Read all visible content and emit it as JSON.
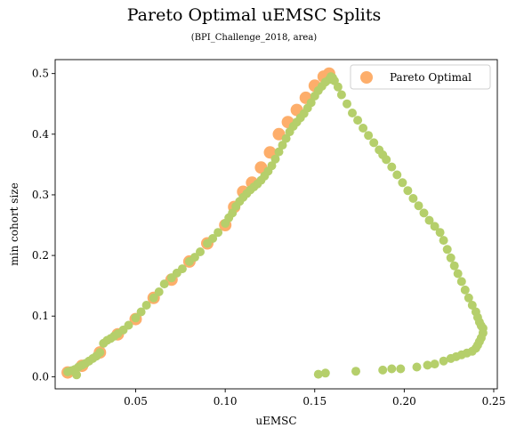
{
  "chart_data": {
    "type": "scatter",
    "title": "Pareto Optimal uEMSC Splits",
    "subtitle": "(BPI_Challenge_2018, area)",
    "xlabel": "uEMSC",
    "ylabel": "min cohort size",
    "xlim": [
      0.005,
      0.252
    ],
    "ylim": [
      -0.02,
      0.523
    ],
    "xticks": [
      0.05,
      0.1,
      0.15,
      0.2,
      0.25
    ],
    "xtick_labels": [
      "0.05",
      "0.10",
      "0.15",
      "0.20",
      "0.25"
    ],
    "yticks": [
      0.0,
      0.1,
      0.2,
      0.3,
      0.4,
      0.5
    ],
    "ytick_labels": [
      "0.0",
      "0.1",
      "0.2",
      "0.3",
      "0.4",
      "0.5"
    ],
    "grid": false,
    "legend": {
      "position": "top-right",
      "entries": [
        {
          "label": "Pareto Optimal",
          "color": "#fdae6b"
        }
      ]
    },
    "series": [
      {
        "name": "Pareto Optimal",
        "color": "#fdae6b",
        "x": [
          0.012,
          0.02,
          0.03,
          0.04,
          0.05,
          0.06,
          0.07,
          0.08,
          0.09,
          0.1,
          0.105,
          0.11,
          0.115,
          0.12,
          0.125,
          0.13,
          0.135,
          0.14,
          0.145,
          0.15,
          0.155,
          0.158
        ],
        "y": [
          0.007,
          0.018,
          0.04,
          0.07,
          0.095,
          0.13,
          0.16,
          0.19,
          0.22,
          0.25,
          0.28,
          0.305,
          0.32,
          0.345,
          0.37,
          0.4,
          0.42,
          0.44,
          0.46,
          0.48,
          0.495,
          0.5
        ]
      },
      {
        "color": "#b5cf6b",
        "x": [
          0.012,
          0.014,
          0.016,
          0.018,
          0.02,
          0.022,
          0.024,
          0.026,
          0.028,
          0.03,
          0.032,
          0.034,
          0.036,
          0.038,
          0.04,
          0.043,
          0.046,
          0.05,
          0.053,
          0.056,
          0.06,
          0.063,
          0.066,
          0.07,
          0.073,
          0.076,
          0.08,
          0.083,
          0.086,
          0.09,
          0.093,
          0.096,
          0.1,
          0.102,
          0.104,
          0.106,
          0.108,
          0.11,
          0.112,
          0.114,
          0.116,
          0.118,
          0.12,
          0.122,
          0.124,
          0.126,
          0.128,
          0.13,
          0.132,
          0.134,
          0.136,
          0.138,
          0.14,
          0.142,
          0.144,
          0.146,
          0.148,
          0.15,
          0.152,
          0.154,
          0.156,
          0.158,
          0.159,
          0.16,
          0.161,
          0.163,
          0.165,
          0.168,
          0.171,
          0.174,
          0.177,
          0.18,
          0.183,
          0.186,
          0.188,
          0.19,
          0.193,
          0.196,
          0.199,
          0.202,
          0.205,
          0.208,
          0.211,
          0.214,
          0.217,
          0.22,
          0.222,
          0.224,
          0.226,
          0.228,
          0.23,
          0.232,
          0.234,
          0.236,
          0.238,
          0.24,
          0.241,
          0.242,
          0.243,
          0.244,
          0.244,
          0.243,
          0.242,
          0.241,
          0.24,
          0.238,
          0.235,
          0.232,
          0.229,
          0.226,
          0.222,
          0.217,
          0.213,
          0.207,
          0.198,
          0.193,
          0.188,
          0.173,
          0.156,
          0.152,
          0.017
        ],
        "y": [
          0.008,
          0.01,
          0.012,
          0.016,
          0.019,
          0.022,
          0.026,
          0.03,
          0.034,
          0.04,
          0.055,
          0.06,
          0.063,
          0.067,
          0.071,
          0.077,
          0.085,
          0.097,
          0.107,
          0.118,
          0.13,
          0.14,
          0.153,
          0.163,
          0.171,
          0.178,
          0.19,
          0.197,
          0.206,
          0.22,
          0.228,
          0.238,
          0.253,
          0.262,
          0.27,
          0.281,
          0.289,
          0.296,
          0.302,
          0.308,
          0.313,
          0.318,
          0.324,
          0.331,
          0.339,
          0.348,
          0.359,
          0.371,
          0.382,
          0.393,
          0.404,
          0.413,
          0.42,
          0.427,
          0.434,
          0.443,
          0.452,
          0.463,
          0.472,
          0.479,
          0.486,
          0.49,
          0.495,
          0.493,
          0.488,
          0.478,
          0.465,
          0.45,
          0.435,
          0.423,
          0.41,
          0.398,
          0.386,
          0.374,
          0.366,
          0.358,
          0.346,
          0.333,
          0.32,
          0.307,
          0.294,
          0.282,
          0.27,
          0.258,
          0.248,
          0.238,
          0.225,
          0.21,
          0.196,
          0.183,
          0.17,
          0.157,
          0.143,
          0.13,
          0.118,
          0.107,
          0.098,
          0.09,
          0.084,
          0.08,
          0.072,
          0.064,
          0.058,
          0.052,
          0.047,
          0.042,
          0.039,
          0.036,
          0.033,
          0.03,
          0.026,
          0.021,
          0.019,
          0.016,
          0.013,
          0.013,
          0.011,
          0.009,
          0.006,
          0.004,
          0.003
        ]
      }
    ]
  }
}
